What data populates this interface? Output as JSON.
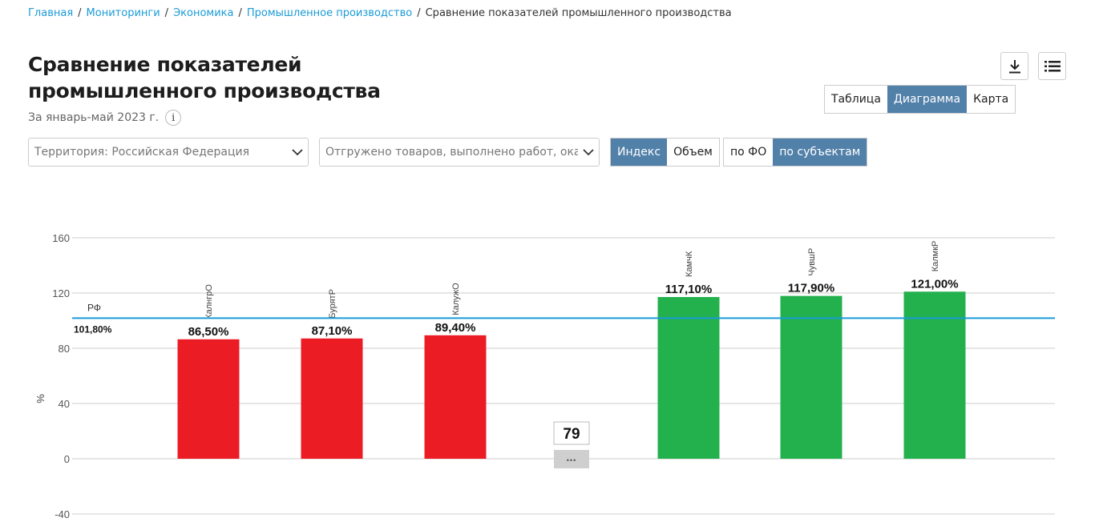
{
  "breadcrumb": {
    "items": [
      "Главная",
      "Мониторинги",
      "Экономика",
      "Промышленное производство"
    ],
    "current": "Сравнение показателей промышленного производства"
  },
  "page": {
    "title": "Сравнение показателей промышленного производства",
    "period": "За январь-май 2023 г.",
    "info_icon": "i"
  },
  "toolbar": {
    "download_icon": "download-icon",
    "menu_icon": "list-icon"
  },
  "view_tabs": {
    "options": [
      "Таблица",
      "Диаграмма",
      "Карта"
    ],
    "active": "Диаграмма"
  },
  "filters": {
    "territory": "Территория: Российская  Федерация",
    "indicator": "Отгружено товаров, выполнено работ, оказано услуг"
  },
  "measure_toggle": {
    "options": [
      "Индекс",
      "Объем"
    ],
    "active": "Индекс"
  },
  "level_toggle": {
    "options": [
      "по ФО",
      "по субъектам"
    ],
    "active": "по субъектам"
  },
  "colors": {
    "link": "#1a9bd7",
    "active_tab": "#5180a9",
    "bar_low": "#ec1c24",
    "bar_high": "#23b14d",
    "reference_line": "#1a9bd7"
  },
  "chart_data": {
    "type": "bar",
    "ylabel": "%",
    "ylim": [
      -40,
      160
    ],
    "yticks": [
      160,
      120,
      80,
      40,
      0,
      -40
    ],
    "grid": true,
    "reference": {
      "name": "РФ",
      "value": 101.8,
      "label": "101,80%"
    },
    "categories": [
      "КалнгрО",
      "БурятР",
      "КалужО",
      "",
      "КамчК",
      "ЧувшР",
      "КалмкР"
    ],
    "values": [
      86.5,
      87.1,
      89.4,
      null,
      117.1,
      117.9,
      121.0
    ],
    "value_labels": [
      "86,50%",
      "87,10%",
      "89,40%",
      "",
      "117,10%",
      "117,90%",
      "121,00%"
    ],
    "bar_colors": [
      "#ec1c24",
      "#ec1c24",
      "#ec1c24",
      "",
      "#23b14d",
      "#23b14d",
      "#23b14d"
    ],
    "hidden_group": {
      "count_label": "79",
      "ellipsis": "•••"
    }
  }
}
